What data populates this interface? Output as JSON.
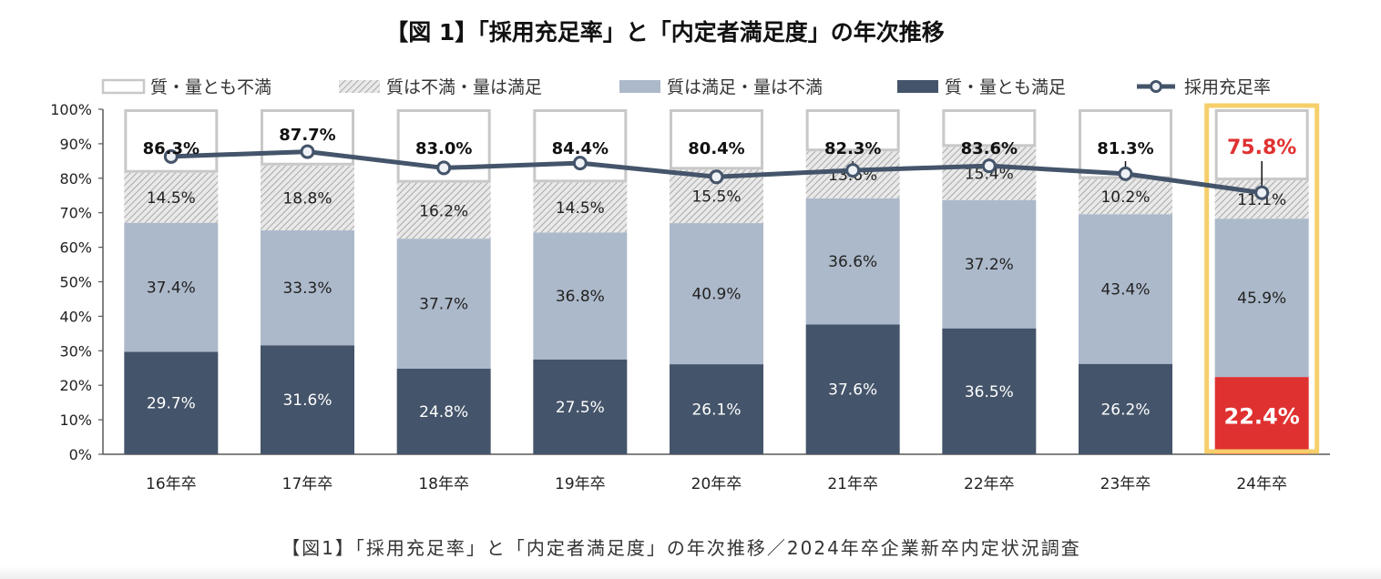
{
  "title": "【図 1】「採用充足率」と「内定者満足度」の年次推移",
  "caption": "【図1】「採用充足率」と「内定者満足度」の年次推移／2024年卒企業新卒内定状況調査",
  "legend": [
    {
      "key": "unsat_both",
      "label": "質・量とも不満"
    },
    {
      "key": "qual_unsat_qty_sat",
      "label": "質は不満・量は満足"
    },
    {
      "key": "qual_sat_qty_unsat",
      "label": "質は満足・量は不満"
    },
    {
      "key": "sat_both",
      "label": "質・量とも満足"
    },
    {
      "key": "fill_rate",
      "label": "採用充足率"
    }
  ],
  "colors": {
    "sat_both": "#44546a",
    "qual_sat_qty_unsat": "#acb9ca",
    "qual_unsat_qty_sat": "#d0d0d0",
    "unsat_both": "#ffffff",
    "unsat_border": "#c8c8c8",
    "line": "#44546a",
    "highlight_bar": "#e03131",
    "highlight_text": "#e03131",
    "highlight_frame": "#f6cf6b",
    "axis": "#595959"
  },
  "chart_data": {
    "type": "bar",
    "stacked": true,
    "categories": [
      "16年卒",
      "17年卒",
      "18年卒",
      "19年卒",
      "20年卒",
      "21年卒",
      "22年卒",
      "23年卒",
      "24年卒"
    ],
    "y_ticks": [
      "0%",
      "10%",
      "20%",
      "30%",
      "40%",
      "50%",
      "60%",
      "70%",
      "80%",
      "90%",
      "100%"
    ],
    "ylim": [
      0,
      100
    ],
    "series": [
      {
        "name": "質・量とも満足",
        "key": "sat_both",
        "values": [
          29.7,
          31.6,
          24.8,
          27.5,
          26.1,
          37.6,
          36.5,
          26.2,
          22.4
        ],
        "labels": [
          "29.7%",
          "31.6%",
          "24.8%",
          "27.5%",
          "26.1%",
          "37.6%",
          "36.5%",
          "26.2%",
          "22.4%"
        ]
      },
      {
        "name": "質は満足・量は不満",
        "key": "qual_sat_qty_unsat",
        "values": [
          37.4,
          33.3,
          37.7,
          36.8,
          40.9,
          36.6,
          37.2,
          43.4,
          45.9
        ],
        "labels": [
          "37.4%",
          "33.3%",
          "37.7%",
          "36.8%",
          "40.9%",
          "36.6%",
          "37.2%",
          "43.4%",
          "45.9%"
        ]
      },
      {
        "name": "質は不満・量は満足",
        "key": "qual_unsat_qty_sat",
        "values": [
          14.5,
          18.8,
          16.2,
          14.5,
          15.5,
          13.6,
          15.4,
          10.2,
          11.1
        ],
        "labels": [
          "14.5%",
          "18.8%",
          "16.2%",
          "14.5%",
          "15.5%",
          "13.6%",
          "15.4%",
          "10.2%",
          "11.1%"
        ]
      },
      {
        "name": "質・量とも不満",
        "key": "unsat_both",
        "values": [
          18.4,
          16.3,
          21.3,
          21.2,
          17.5,
          12.2,
          10.9,
          20.2,
          20.6
        ]
      }
    ],
    "line": {
      "name": "採用充足率",
      "values": [
        86.3,
        87.7,
        83.0,
        84.4,
        80.4,
        82.3,
        83.6,
        81.3,
        75.8
      ],
      "labels": [
        "86.3%",
        "87.7%",
        "83.0%",
        "84.4%",
        "80.4%",
        "82.3%",
        "83.6%",
        "81.3%",
        "75.8%"
      ]
    },
    "highlight_category": "24年卒",
    "legend_position": "top"
  }
}
